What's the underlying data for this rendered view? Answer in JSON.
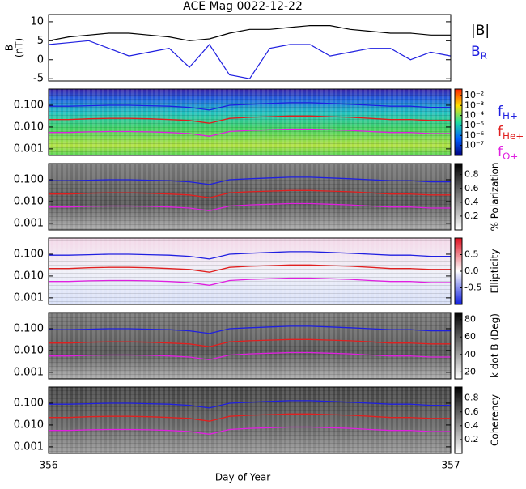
{
  "chart_data": {
    "type": "multi-panel",
    "title": "ACE Mag 0022-12-22",
    "x_label": "Day of Year",
    "xlim": [
      356,
      357
    ],
    "xticks": [
      356,
      357
    ],
    "x": [
      356.0,
      356.05,
      356.1,
      356.15,
      356.2,
      356.25,
      356.3,
      356.35,
      356.4,
      356.45,
      356.5,
      356.55,
      356.6,
      356.65,
      356.7,
      356.75,
      356.8,
      356.85,
      356.9,
      356.95,
      357.0
    ],
    "field_panel": {
      "type": "line",
      "y_label": [
        "B",
        "(nT)"
      ],
      "ylim": [
        -5.6,
        11.9
      ],
      "yticks": [
        -5,
        0,
        5,
        10
      ],
      "series": [
        {
          "name": "|B|",
          "color": "#000000",
          "values": [
            5,
            6,
            6.5,
            7,
            7,
            6.5,
            6,
            5,
            5.5,
            7,
            8,
            8,
            8.5,
            9,
            9,
            8,
            7.5,
            7,
            7,
            6.5,
            6.5
          ]
        },
        {
          "name": "B",
          "sub": "R",
          "color": "#1f1fe0",
          "values": [
            4,
            4.5,
            5,
            3,
            1,
            2,
            3,
            -2,
            4,
            -4,
            -5,
            3,
            4,
            4,
            1,
            2,
            3,
            3,
            0,
            2,
            1
          ]
        }
      ]
    },
    "gyrofrequency_lines": [
      {
        "name": "f",
        "sub": "H+",
        "color": "#1f1fe0",
        "values": [
          0.09,
          0.09,
          0.095,
          0.1,
          0.1,
          0.095,
          0.09,
          0.08,
          0.06,
          0.1,
          0.11,
          0.12,
          0.13,
          0.13,
          0.12,
          0.11,
          0.1,
          0.09,
          0.09,
          0.08,
          0.08
        ]
      },
      {
        "name": "f",
        "sub": "He+",
        "color": "#e01f1f",
        "values": [
          0.022,
          0.022,
          0.024,
          0.025,
          0.025,
          0.024,
          0.022,
          0.02,
          0.015,
          0.025,
          0.028,
          0.03,
          0.032,
          0.032,
          0.03,
          0.028,
          0.025,
          0.022,
          0.022,
          0.02,
          0.02
        ]
      },
      {
        "name": "f",
        "sub": "O+",
        "color": "#e01fe0",
        "values": [
          0.0056,
          0.0056,
          0.006,
          0.0062,
          0.0062,
          0.006,
          0.0056,
          0.005,
          0.0038,
          0.0062,
          0.007,
          0.0075,
          0.008,
          0.008,
          0.0075,
          0.007,
          0.0062,
          0.0056,
          0.0056,
          0.005,
          0.005
        ]
      }
    ],
    "spectral_ylim": [
      0.0005,
      0.55
    ],
    "spectral_yticks": [
      0.001,
      {
        "value": 0.01,
        "label": "0.010"
      },
      {
        "value": 0.1,
        "label": "0.100"
      }
    ],
    "spectral_panels": [
      {
        "type": "spectrogram",
        "colorbar_label": "",
        "clim": [
          -8,
          -1.36
        ],
        "cticks": [
          {
            "value": -2,
            "label": "10⁻²"
          },
          {
            "value": -3,
            "label": "10⁻³"
          },
          {
            "value": -4,
            "label": "10⁻⁴"
          },
          {
            "value": -5,
            "label": "10⁻⁵"
          },
          {
            "value": -6,
            "label": "10⁻⁶"
          },
          {
            "value": -7,
            "label": "10⁻⁷"
          }
        ],
        "colormap": "jet"
      },
      {
        "type": "spectrogram",
        "colorbar_label": "% Polarization",
        "clim": [
          0,
          0.96
        ],
        "cticks": [
          0.2,
          0.4,
          0.6,
          0.8
        ],
        "colormap": "gray"
      },
      {
        "type": "spectrogram",
        "colorbar_label": "Ellipticity",
        "clim": [
          -1,
          1
        ],
        "cticks": [
          -0.5,
          {
            "value": 0,
            "label": "0.0"
          },
          0.5
        ],
        "colormap": "bwr"
      },
      {
        "type": "spectrogram",
        "colorbar_label": "k dot B (Deg)",
        "clim": [
          12,
          88
        ],
        "cticks": [
          20,
          40,
          60,
          80
        ],
        "colormap": "gray"
      },
      {
        "type": "spectrogram",
        "colorbar_label": "Coherency",
        "clim": [
          0,
          0.96
        ],
        "cticks": [
          0.2,
          0.4,
          0.6,
          0.8
        ],
        "colormap": "gray"
      }
    ]
  }
}
